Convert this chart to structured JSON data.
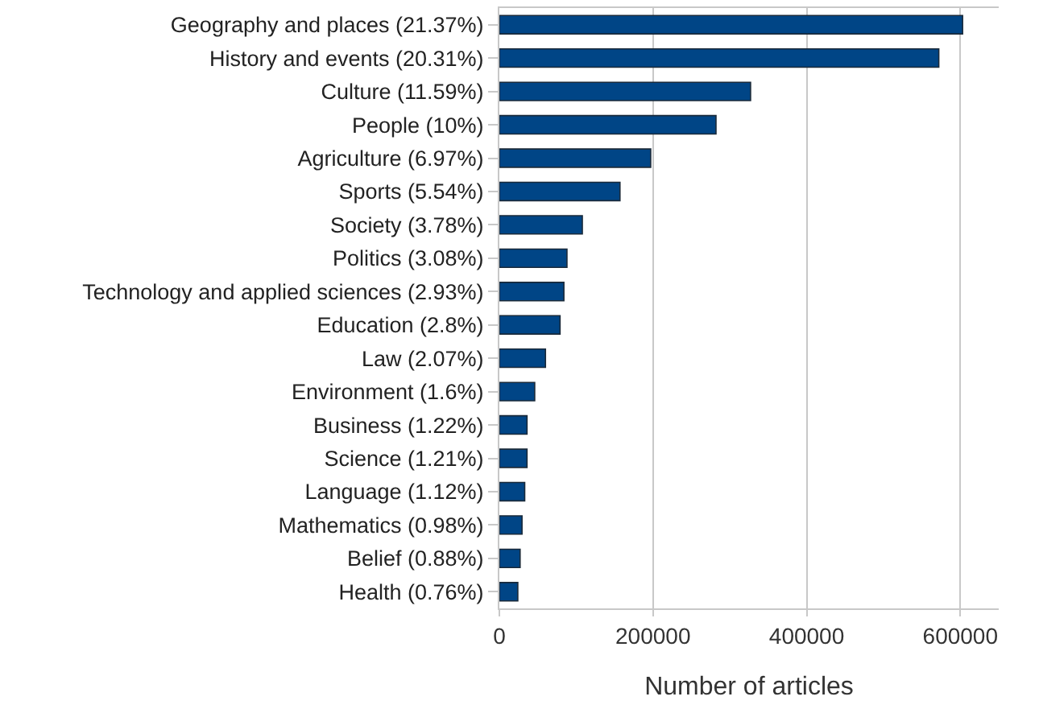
{
  "chart_data": {
    "type": "bar",
    "orientation": "horizontal",
    "xlabel": "Number of articles",
    "categories": [
      "Geography and places (21.37%)",
      "History and events (20.31%)",
      "Culture (11.59%)",
      "People (10%)",
      "Agriculture (6.97%)",
      "Sports (5.54%)",
      "Society (3.78%)",
      "Politics (3.08%)",
      "Technology and applied sciences (2.93%)",
      "Education (2.8%)",
      "Law (2.07%)",
      "Environment (1.6%)",
      "Business (1.22%)",
      "Science (1.21%)",
      "Language (1.12%)",
      "Mathematics (0.98%)",
      "Belief (0.88%)",
      "Health (0.76%)"
    ],
    "values": [
      603000,
      572000,
      327000,
      282000,
      197000,
      157000,
      108000,
      88000,
      84000,
      79000,
      60000,
      46000,
      36000,
      36000,
      33000,
      29500,
      27000,
      24000
    ],
    "color": "#004586",
    "xlim": [
      0,
      650000
    ],
    "xticks": [
      0,
      200000,
      400000,
      600000
    ],
    "grid": "x"
  }
}
